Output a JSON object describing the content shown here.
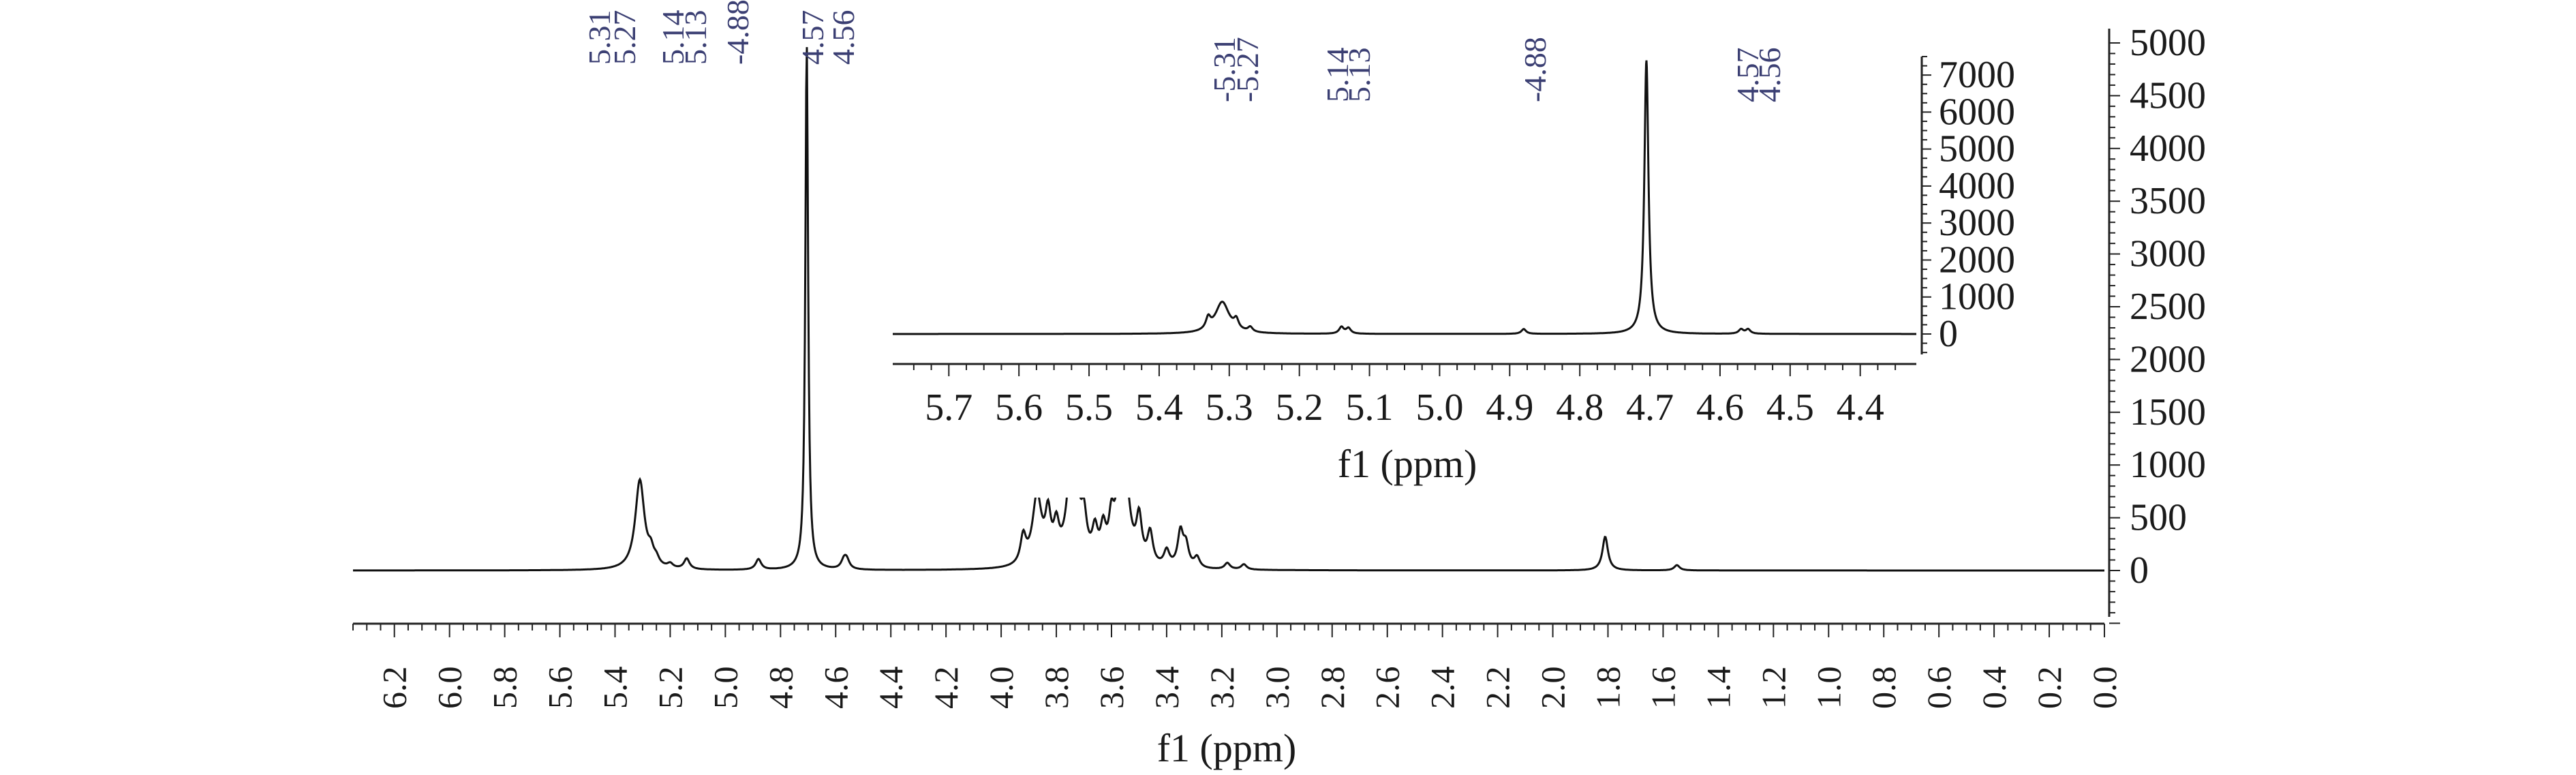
{
  "chart_data": [
    {
      "type": "line",
      "xlabel": "f1 (ppm)",
      "ylabel": "",
      "xlim": [
        6.35,
        0.0
      ],
      "ylim": [
        -500,
        5000
      ],
      "x_ticks": [
        "6.2",
        "6.0",
        "5.8",
        "5.6",
        "5.4",
        "5.2",
        "5.0",
        "4.8",
        "4.6",
        "4.4",
        "4.2",
        "4.0",
        "3.8",
        "3.6",
        "3.4",
        "3.2",
        "3.0",
        "2.8",
        "2.6",
        "2.4",
        "2.2",
        "2.0",
        "1.8",
        "1.6",
        "1.4",
        "1.2",
        "1.0",
        "0.8",
        "0.6",
        "0.4",
        "0.2",
        "0.0"
      ],
      "y_ticks": [
        "0",
        "500",
        "1000",
        "1500",
        "2000",
        "2500",
        "3000",
        "3500",
        "4000",
        "4500",
        "5000"
      ],
      "grid": false,
      "peak_labels": [
        "5.31",
        "5.27",
        "5.14",
        "5.13",
        "4.88",
        "4.57",
        "4.56"
      ],
      "peaks": [
        {
          "x": 5.31,
          "y": 850
        },
        {
          "x": 5.27,
          "y": 120
        },
        {
          "x": 5.14,
          "y": 100
        },
        {
          "x": 4.88,
          "y": 100
        },
        {
          "x": 4.705,
          "y": 5000
        },
        {
          "x": 4.57,
          "y": 80
        },
        {
          "x": 4.56,
          "y": 80
        },
        {
          "x": 3.87,
          "y": 650
        },
        {
          "x": 3.74,
          "y": 1320
        },
        {
          "x": 3.55,
          "y": 850
        },
        {
          "x": 3.35,
          "y": 330
        },
        {
          "x": 1.81,
          "y": 320
        },
        {
          "x": 1.55,
          "y": 50
        }
      ]
    },
    {
      "type": "line",
      "xlabel": "f1 (ppm)",
      "ylabel": "",
      "xlim": [
        5.78,
        4.32
      ],
      "ylim": [
        -500,
        7500
      ],
      "x_ticks": [
        "5.7",
        "5.6",
        "5.5",
        "5.4",
        "5.3",
        "5.2",
        "5.1",
        "5.0",
        "4.9",
        "4.8",
        "4.7",
        "4.6",
        "4.5",
        "4.4"
      ],
      "y_ticks": [
        "0",
        "1000",
        "2000",
        "3000",
        "4000",
        "5000",
        "6000",
        "7000"
      ],
      "grid": false,
      "peak_labels": [
        "5.31",
        "5.27",
        "5.14",
        "5.13",
        "4.88",
        "4.57",
        "4.56"
      ],
      "peaks": [
        {
          "x": 5.31,
          "y": 850
        },
        {
          "x": 5.27,
          "y": 130
        },
        {
          "x": 5.14,
          "y": 180
        },
        {
          "x": 5.13,
          "y": 150
        },
        {
          "x": 4.88,
          "y": 130
        },
        {
          "x": 4.705,
          "y": 7400
        },
        {
          "x": 4.57,
          "y": 120
        },
        {
          "x": 4.56,
          "y": 120
        }
      ]
    }
  ]
}
